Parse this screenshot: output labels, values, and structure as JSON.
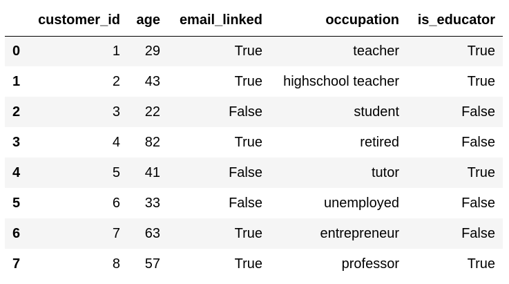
{
  "table": {
    "index_header": "",
    "columns": [
      "customer_id",
      "age",
      "email_linked",
      "occupation",
      "is_educator"
    ],
    "rows": [
      {
        "index": "0",
        "customer_id": "1",
        "age": "29",
        "email_linked": "True",
        "occupation": "teacher",
        "is_educator": "True"
      },
      {
        "index": "1",
        "customer_id": "2",
        "age": "43",
        "email_linked": "True",
        "occupation": "highschool teacher",
        "is_educator": "True"
      },
      {
        "index": "2",
        "customer_id": "3",
        "age": "22",
        "email_linked": "False",
        "occupation": "student",
        "is_educator": "False"
      },
      {
        "index": "3",
        "customer_id": "4",
        "age": "82",
        "email_linked": "True",
        "occupation": "retired",
        "is_educator": "False"
      },
      {
        "index": "4",
        "customer_id": "5",
        "age": "41",
        "email_linked": "False",
        "occupation": "tutor",
        "is_educator": "True"
      },
      {
        "index": "5",
        "customer_id": "6",
        "age": "33",
        "email_linked": "False",
        "occupation": "unemployed",
        "is_educator": "False"
      },
      {
        "index": "6",
        "customer_id": "7",
        "age": "63",
        "email_linked": "True",
        "occupation": "entrepreneur",
        "is_educator": "False"
      },
      {
        "index": "7",
        "customer_id": "8",
        "age": "57",
        "email_linked": "True",
        "occupation": "professor",
        "is_educator": "True"
      }
    ]
  },
  "colors": {
    "stripe": "#f5f5f5",
    "background": "#ffffff",
    "text": "#000000",
    "header_rule": "#000000"
  }
}
